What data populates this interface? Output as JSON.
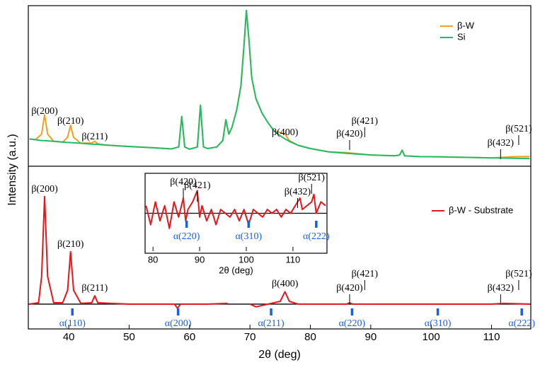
{
  "chart_data": [
    {
      "type": "line",
      "ylabel": "Intensity (a.u.)",
      "xlim": [
        33.3,
        116.5
      ],
      "ylim": [
        0,
        100
      ],
      "legend": "upper right",
      "x": [
        33.5,
        34.5,
        35.5,
        36,
        36.5,
        37.5,
        39,
        39.8,
        40.3,
        40.8,
        42,
        43.8,
        44.3,
        44.8,
        46,
        50,
        54,
        57,
        58.2,
        58.7,
        59.2,
        60,
        61.3,
        61.8,
        62.3,
        63,
        64.5,
        65.5,
        66,
        66.5,
        67,
        67.8,
        68.5,
        69,
        69.4,
        69.8,
        70.3,
        71,
        72,
        73,
        74,
        75,
        75.8,
        76.5,
        78,
        80,
        83,
        86,
        90,
        94,
        94.8,
        95.2,
        95.6,
        98,
        102,
        106,
        110,
        114,
        116.3
      ],
      "series": [
        {
          "name": "β-W",
          "color": "#f0a020",
          "values": [
            17,
            16.5,
            20,
            32,
            20,
            15.5,
            15,
            18,
            25.5,
            18,
            14.3,
            14.5,
            15.5,
            14,
            13.2,
            12.3,
            11.5,
            10.8,
            12,
            31,
            12,
            10.6,
            12,
            38,
            12,
            11,
            12,
            16,
            29,
            20,
            24,
            35,
            50,
            75,
            97,
            80,
            55,
            42,
            33,
            27,
            22,
            21,
            20,
            16,
            13,
            11,
            9,
            8.5,
            7,
            6.5,
            7,
            10,
            6.5,
            6,
            5.8,
            5.5,
            5.2,
            6,
            6
          ]
        },
        {
          "name": "Si",
          "color": "#22bb66",
          "values": [
            17,
            16.5,
            16,
            16,
            15.8,
            15.5,
            15,
            14.8,
            14.7,
            14.6,
            14.3,
            13.8,
            13.7,
            13.6,
            13.2,
            12.3,
            11.5,
            10.8,
            12,
            31,
            12,
            10.6,
            12,
            38,
            12,
            11,
            12,
            16,
            29,
            20,
            24,
            35,
            50,
            75,
            97,
            80,
            55,
            42,
            33,
            27,
            22,
            19,
            17,
            15.5,
            13,
            11,
            9,
            8,
            7,
            6.5,
            7,
            10,
            6.5,
            6,
            5.8,
            5.5,
            5.2,
            5,
            4.8
          ]
        }
      ],
      "annotations": [
        {
          "text": "β(200)",
          "x": 36
        },
        {
          "text": "β(210)",
          "x": 40.3
        },
        {
          "text": "β(211)",
          "x": 44.3
        },
        {
          "text": "β(400)",
          "x": 75.8
        },
        {
          "text": "β(420)",
          "x": 86.5
        },
        {
          "text": "β(421)",
          "x": 89
        },
        {
          "text": "β(432)",
          "x": 111.5
        },
        {
          "text": "β(521)",
          "x": 114.5
        }
      ]
    },
    {
      "type": "line",
      "xlabel": "2θ (deg)",
      "xlim": [
        33.3,
        116.5
      ],
      "ylim": [
        -18,
        100
      ],
      "xticks": [
        40,
        50,
        60,
        70,
        80,
        90,
        100,
        110
      ],
      "legend": "upper right",
      "x": [
        33.5,
        35,
        35.5,
        36,
        36.5,
        37.5,
        39,
        39.8,
        40.3,
        40.8,
        42,
        43.8,
        44.3,
        44.8,
        47,
        50,
        54,
        57.5,
        58,
        58.5,
        60,
        63,
        66.3,
        66.5,
        70,
        71,
        73,
        75,
        75.8,
        76.5,
        78,
        82,
        86,
        86.5,
        87,
        90,
        95,
        100,
        105,
        110,
        112,
        116.3
      ],
      "series": [
        {
          "name": "β-W - Substrate",
          "color": "#e8161b",
          "values": [
            0,
            1,
            20,
            78,
            20,
            1,
            1,
            10,
            38,
            10,
            0.5,
            1,
            6,
            1,
            0.5,
            0,
            0,
            0,
            -3,
            0,
            0,
            0,
            0.5,
            null,
            0,
            -2,
            0,
            2,
            9,
            2,
            0,
            0,
            0,
            1,
            0,
            0,
            0,
            0,
            0,
            0,
            0.5,
            0
          ]
        }
      ],
      "annotations": [
        {
          "text": "β(200)",
          "x": 36
        },
        {
          "text": "β(210)",
          "x": 40.3
        },
        {
          "text": "β(211)",
          "x": 44.3
        },
        {
          "text": "β(400)",
          "x": 75.8
        },
        {
          "text": "β(420)",
          "x": 86.5
        },
        {
          "text": "β(421)",
          "x": 89
        },
        {
          "text": "β(432)",
          "x": 111.5
        },
        {
          "text": "β(521)",
          "x": 114.5
        }
      ],
      "reflections": [
        {
          "text": "α(110)",
          "x": 40.6
        },
        {
          "text": "α(200)",
          "x": 58.1
        },
        {
          "text": "α(211)",
          "x": 73.5
        },
        {
          "text": "α(220)",
          "x": 86.9
        },
        {
          "text": "α(310)",
          "x": 101.1
        },
        {
          "text": "α(222)",
          "x": 115
        }
      ]
    },
    {
      "type": "line",
      "xlabel": "2θ (deg)",
      "xlim": [
        78.3,
        117.3
      ],
      "ylim": [
        -10,
        10
      ],
      "xticks": [
        80,
        90,
        100,
        110
      ],
      "x": [
        78.5,
        79.5,
        80.5,
        81.5,
        82.5,
        83.5,
        84.5,
        85.5,
        86.5,
        87,
        87.5,
        88.5,
        89.5,
        90,
        90.5,
        91.5,
        92.5,
        93.5,
        94.5,
        95.5,
        96.5,
        97.5,
        98.5,
        99.5,
        100.5,
        101.5,
        102.5,
        103.5,
        104.5,
        105.5,
        106.5,
        107.5,
        108.5,
        109.5,
        110.5,
        111.5,
        112,
        113,
        114,
        114.5,
        115,
        116,
        117
      ],
      "series": [
        {
          "color": "#e8161b",
          "values": [
            2,
            -3,
            3,
            -2,
            2,
            -4,
            3,
            -1,
            4,
            -2,
            1,
            3,
            6,
            -1,
            2,
            -2,
            1,
            -3,
            1,
            0,
            -1,
            1,
            -2,
            1,
            -3,
            1,
            0,
            -1,
            1,
            0,
            1,
            -1,
            1,
            0,
            2,
            4,
            1,
            2,
            3,
            5,
            0,
            3,
            2
          ]
        }
      ],
      "annotations": [
        {
          "text": "β(420)",
          "x": 86.5
        },
        {
          "text": "β(421)",
          "x": 89.5
        },
        {
          "text": "β(432)",
          "x": 111
        },
        {
          "text": "β(521)",
          "x": 114
        }
      ],
      "reflections": [
        {
          "text": "α(220)",
          "x": 87.2
        },
        {
          "text": "α(310)",
          "x": 100.5
        },
        {
          "text": "α(222)",
          "x": 115
        }
      ]
    }
  ]
}
